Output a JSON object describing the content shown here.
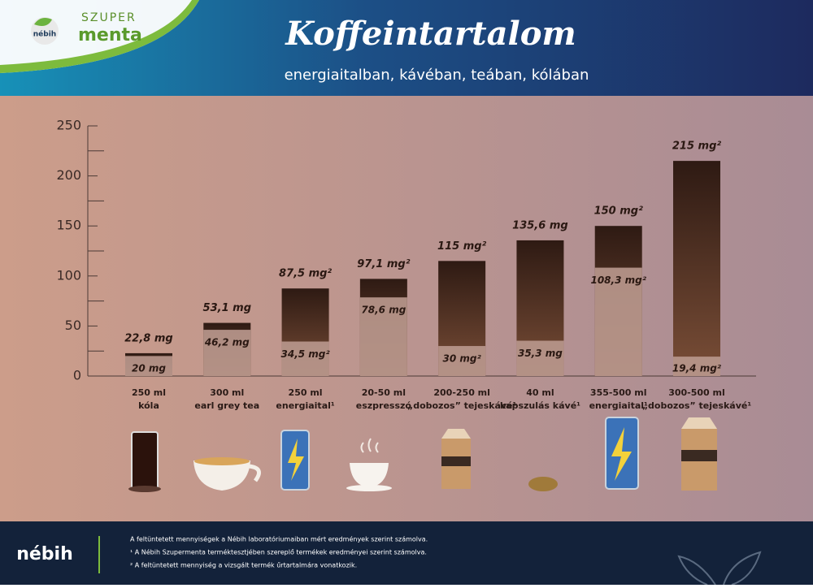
{
  "header": {
    "logo_top": "SZUPER",
    "logo_main": "menta",
    "logo_badge": "nébih"
  },
  "chart_data": {
    "type": "range-bar",
    "title": "Koffeintartalom",
    "subtitle": "energiaitalban, kávéban, teában, kólában",
    "categories": [
      {
        "volume": "250 ml",
        "name": "kóla"
      },
      {
        "volume": "300 ml",
        "name": "earl grey tea"
      },
      {
        "volume": "250 ml",
        "name": "energiaital¹"
      },
      {
        "volume": "20-50 ml",
        "name": "eszpresszó"
      },
      {
        "volume": "200-250 ml",
        "name": "„dobozos” tejeskávé¹"
      },
      {
        "volume": "40 ml",
        "name": "kapszulás kávé¹"
      },
      {
        "volume": "355-500 ml",
        "name": "energiaital¹"
      },
      {
        "volume": "300-500 ml",
        "name": "„dobozos” tejeskávé¹"
      }
    ],
    "series": [
      {
        "color": "#4a2a1c",
        "values": [
          22.8,
          53.1,
          87.5,
          97.1,
          115,
          135.6,
          150,
          215
        ],
        "value_labels": [
          "22,8 mg",
          "53,1 mg",
          "87,5 mg²",
          "97,1 mg²",
          "115 mg²",
          "135,6 mg",
          "150 mg²",
          "215 mg²"
        ]
      },
      {
        "color": "#b8978c",
        "values": [
          20,
          46.2,
          34.5,
          78.6,
          30,
          35.3,
          108.3,
          19.4
        ],
        "value_labels": [
          "20 mg",
          "46,2 mg",
          "34,5 mg²",
          "78,6 mg",
          "30 mg²",
          "35,3 mg",
          "108,3 mg²",
          "19,4 mg²"
        ]
      }
    ],
    "ylim": [
      0,
      250
    ],
    "yticks": [
      0,
      50,
      100,
      150,
      200,
      250
    ],
    "yminorticks": [
      25,
      75,
      125,
      175,
      225
    ]
  },
  "footer": {
    "logo": "nébih",
    "notes": [
      "A feltüntetett mennyiségek a Nébih laboratóriumaiban mért eredmények szerint számolva.",
      "¹ A Nébih Szupermenta terméktesztjében szereplő termékek eredményei szerint számolva.",
      "² A feltüntetett mennyiség a vizsgált termék űrtartalmára vonatkozik."
    ]
  }
}
